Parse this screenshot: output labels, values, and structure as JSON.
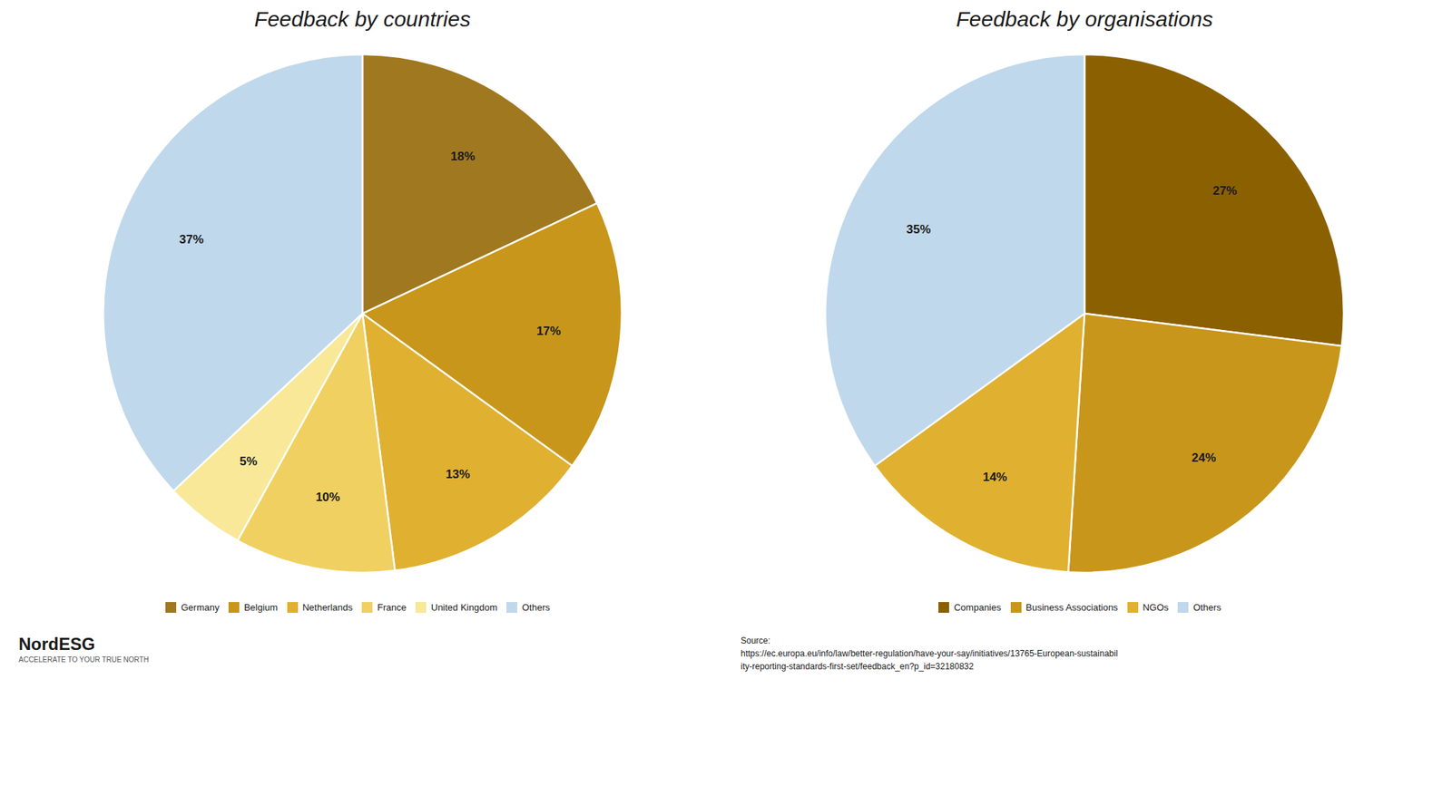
{
  "chart_data": [
    {
      "type": "pie",
      "title": "Feedback by countries",
      "categories": [
        "Germany",
        "Belgium",
        "Netherlands",
        "France",
        "United Kingdom",
        "Others"
      ],
      "values": [
        18,
        17,
        13,
        10,
        5,
        37
      ],
      "value_labels": [
        "18%",
        "17%",
        "13%",
        "10%",
        "5%",
        "37%"
      ],
      "colors": [
        "#A07820",
        "#C8961A",
        "#E0B030",
        "#F0D060",
        "#F8E898",
        "#C0D8EC"
      ],
      "data_labels": true,
      "legend": "bottom",
      "annotations": [
        "NordESG",
        "ACCELERATE TO YOUR TRUE NORTH"
      ]
    },
    {
      "type": "pie",
      "title": "Feedback by organisations",
      "categories": [
        "Companies",
        "Business Associations",
        "NGOs",
        "Others"
      ],
      "values": [
        27,
        24,
        14,
        35
      ],
      "value_labels": [
        "27%",
        "24%",
        "14%",
        "35%"
      ],
      "colors": [
        "#8B6000",
        "#C8961A",
        "#E0B030",
        "#C0D8EC"
      ],
      "data_labels": true,
      "legend": "bottom",
      "annotations": [
        "Source:\nhttps://ec.europa.eu/info/law/better-regulation/have-your-say/initiatives/13765-European-sustainabil\nity-reporting-standards-first-set/feedback_en?p_id=32180832"
      ]
    }
  ]
}
